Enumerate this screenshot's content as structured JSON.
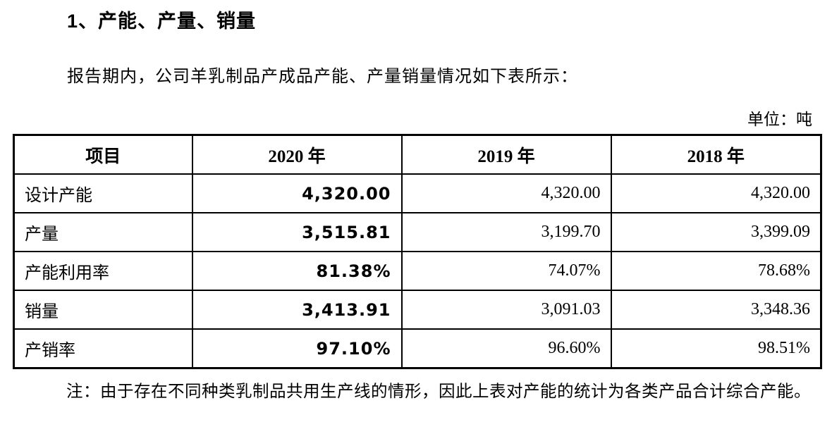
{
  "page": {
    "section_title": "1、产能、产量、销量",
    "intro": "报告期内，公司羊乳制品产成品产能、产量销量情况如下表所示：",
    "unit_label": "单位：吨",
    "note": "注：由于存在不同种类乳制品共用生产线的情形，因此上表对产能的统计为各类产品合计综合产能。"
  },
  "table": {
    "headers": {
      "item": "项目",
      "y2020": "2020 年",
      "y2019": "2019 年",
      "y2018": "2018 年"
    },
    "rows": [
      {
        "label": "设计产能",
        "y2020": "4,320.00",
        "y2019": "4,320.00",
        "y2018": "4,320.00"
      },
      {
        "label": "产量",
        "y2020": "3,515.81",
        "y2019": "3,199.70",
        "y2018": "3,399.09"
      },
      {
        "label": "产能利用率",
        "y2020": "81.38%",
        "y2019": "74.07%",
        "y2018": "78.68%"
      },
      {
        "label": "销量",
        "y2020": "3,413.91",
        "y2019": "3,091.03",
        "y2018": "3,348.36"
      },
      {
        "label": "产销率",
        "y2020": "97.10%",
        "y2019": "96.60%",
        "y2018": "98.51%"
      }
    ]
  }
}
